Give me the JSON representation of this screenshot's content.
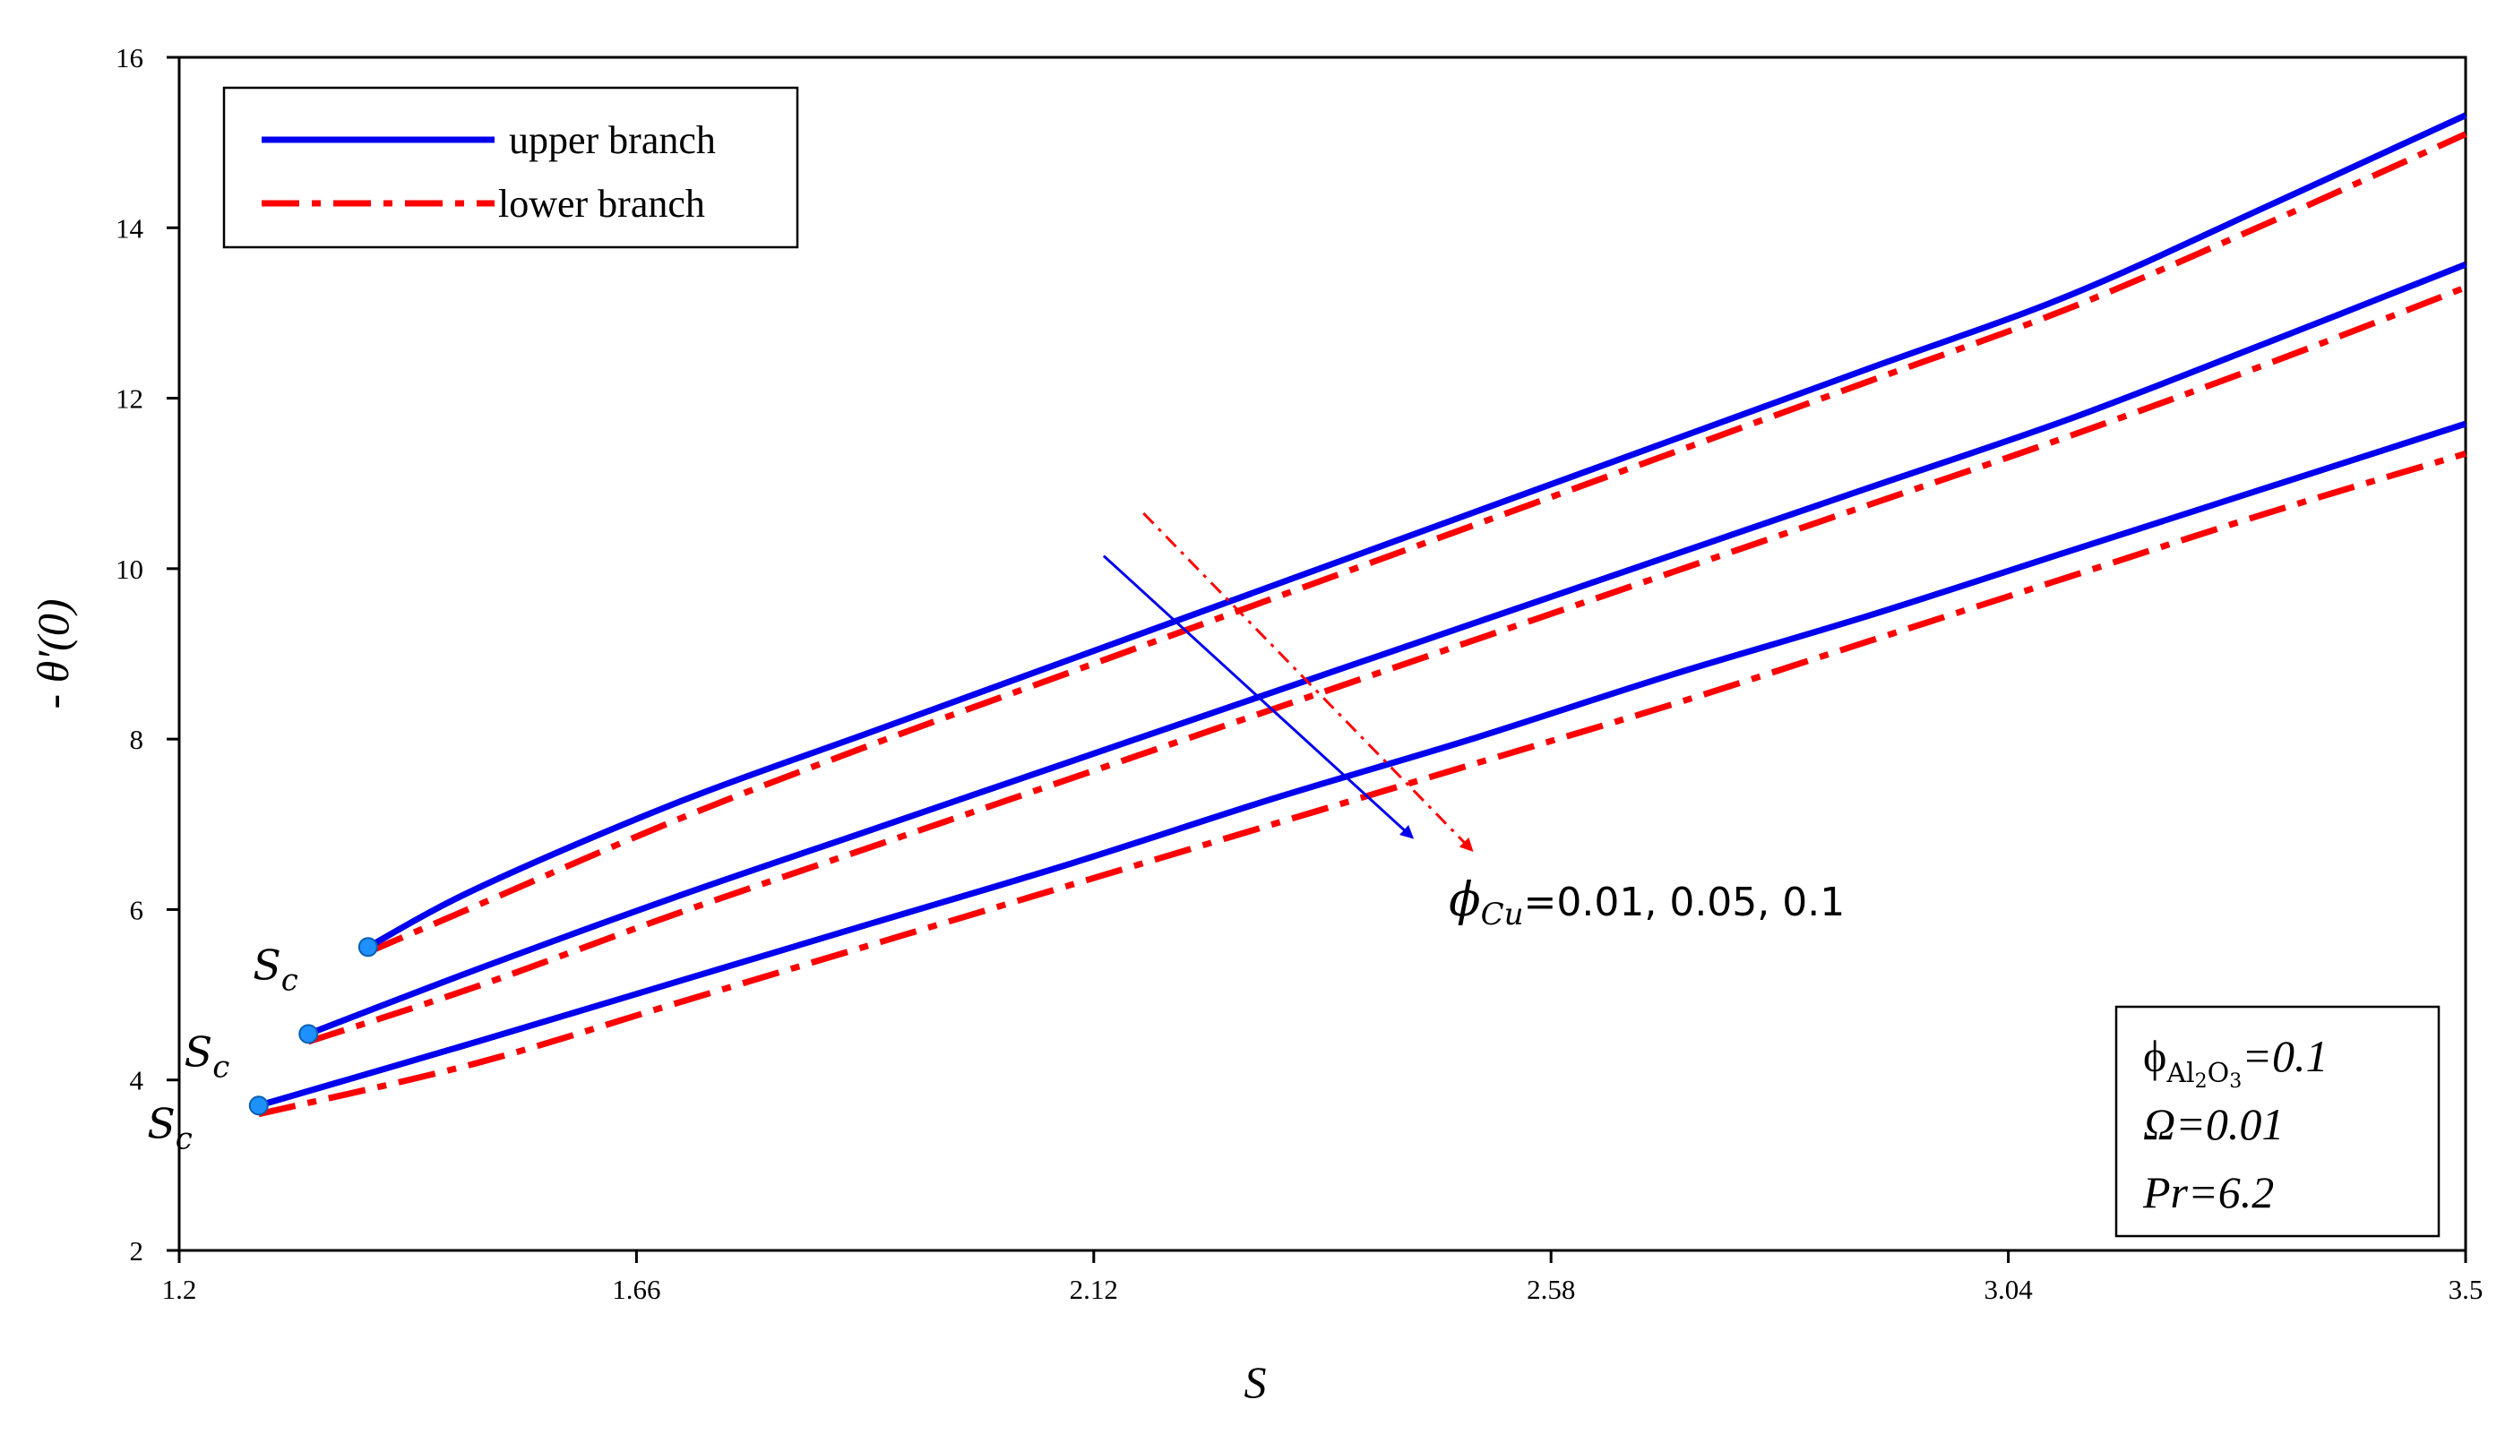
{
  "chart_data": {
    "type": "line",
    "xlabel": "S",
    "ylabel": "- θ′(0)",
    "xlim": [
      1.2,
      3.5
    ],
    "ylim": [
      2,
      16
    ],
    "x_ticks": [
      "1.2",
      "1.66",
      "2.12",
      "2.58",
      "3.04",
      "3.5"
    ],
    "y_ticks": [
      "2",
      "4",
      "6",
      "8",
      "10",
      "12",
      "14",
      "16"
    ],
    "grid": false,
    "legend": {
      "position": "top-left",
      "entries": [
        {
          "label": "upper branch",
          "color": "#0000ee",
          "style": "solid"
        },
        {
          "label": "lower branch",
          "color": "#ff0000",
          "style": "dash-dot"
        }
      ]
    },
    "series": [
      {
        "group": "φCu=0.01",
        "branch": "upper",
        "x": [
          1.39,
          1.5,
          1.7,
          1.9,
          2.1,
          2.3,
          2.5,
          2.7,
          2.9,
          3.1,
          3.3,
          3.5
        ],
        "y": [
          5.56,
          6.25,
          7.25,
          8.1,
          8.95,
          9.8,
          10.65,
          11.5,
          12.35,
          13.2,
          14.25,
          15.32
        ]
      },
      {
        "group": "φCu=0.01",
        "branch": "lower",
        "x": [
          1.39,
          1.5,
          1.7,
          1.9,
          2.1,
          2.3,
          2.5,
          2.7,
          2.9,
          3.1,
          3.3,
          3.5
        ],
        "y": [
          5.5,
          6.05,
          7.05,
          7.95,
          8.8,
          9.65,
          10.5,
          11.35,
          12.2,
          13.05,
          14.05,
          15.1
        ]
      },
      {
        "group": "φCu=0.05",
        "branch": "upper",
        "x": [
          1.33,
          1.5,
          1.7,
          1.9,
          2.1,
          2.3,
          2.5,
          2.7,
          2.9,
          3.1,
          3.3,
          3.5
        ],
        "y": [
          4.54,
          5.3,
          6.15,
          6.95,
          7.75,
          8.55,
          9.35,
          10.15,
          10.95,
          11.75,
          12.65,
          13.57
        ]
      },
      {
        "group": "φCu=0.05",
        "branch": "lower",
        "x": [
          1.33,
          1.5,
          1.7,
          1.9,
          2.1,
          2.3,
          2.5,
          2.7,
          2.9,
          3.1,
          3.3,
          3.5
        ],
        "y": [
          4.45,
          5.1,
          5.95,
          6.75,
          7.55,
          8.35,
          9.15,
          9.95,
          10.75,
          11.55,
          12.4,
          13.3
        ]
      },
      {
        "group": "φCu=0.1",
        "branch": "upper",
        "x": [
          1.28,
          1.5,
          1.7,
          1.9,
          2.1,
          2.3,
          2.5,
          2.7,
          2.9,
          3.1,
          3.3,
          3.5
        ],
        "y": [
          3.7,
          4.45,
          5.15,
          5.85,
          6.55,
          7.3,
          8.0,
          8.75,
          9.45,
          10.2,
          10.95,
          11.7
        ]
      },
      {
        "group": "φCu=0.1",
        "branch": "lower",
        "x": [
          1.28,
          1.5,
          1.7,
          1.9,
          2.1,
          2.3,
          2.5,
          2.7,
          2.9,
          3.1,
          3.3,
          3.5
        ],
        "y": [
          3.6,
          4.2,
          4.9,
          5.6,
          6.3,
          7.0,
          7.7,
          8.4,
          9.15,
          9.9,
          10.65,
          11.35
        ]
      }
    ],
    "critical_points": [
      {
        "label": "S",
        "sub": "c",
        "x": 1.39,
        "y": 5.56
      },
      {
        "label": "S",
        "sub": "c",
        "x": 1.33,
        "y": 4.54
      },
      {
        "label": "S",
        "sub": "c",
        "x": 1.28,
        "y": 3.7
      }
    ],
    "annotations": {
      "arrow_upper": {
        "from": [
          2.13,
          10.15
        ],
        "to": [
          2.44,
          6.85
        ],
        "color": "#0000ee"
      },
      "arrow_lower": {
        "from": [
          2.17,
          10.65
        ],
        "to": [
          2.5,
          6.7
        ],
        "color": "#ff0000"
      },
      "phi_label": {
        "symbol": "ϕ",
        "sub": "Cu",
        "text": "=0.01, 0.05, 0.1",
        "x": 2.47,
        "y": 6.1
      },
      "params": [
        "=0.1",
        "Ω=0.01",
        "Pr=6.2"
      ],
      "param_phi": {
        "symbol": "ϕ",
        "sub": "Al",
        "sub2": "2",
        "sub3": "O",
        "sub4": "3"
      }
    }
  }
}
